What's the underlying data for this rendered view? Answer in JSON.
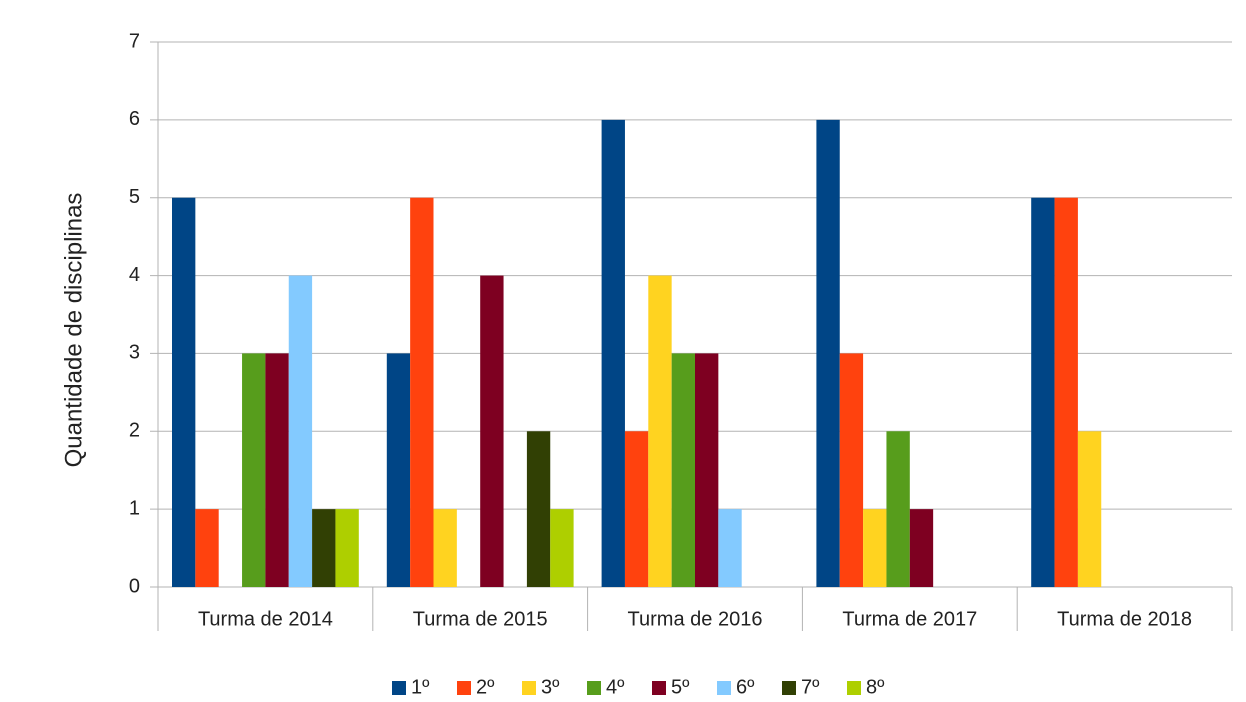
{
  "chart_data": {
    "type": "bar",
    "y_label": "Quantidade de disciplinas",
    "categories": [
      "Turma de 2014",
      "Turma de 2015",
      "Turma de 2016",
      "Turma de 2017",
      "Turma de 2018"
    ],
    "series": [
      {
        "name": "1º",
        "color": "#004586",
        "values": [
          5,
          3,
          6,
          6,
          5
        ]
      },
      {
        "name": "2º",
        "color": "#ff420e",
        "values": [
          1,
          5,
          2,
          3,
          5
        ]
      },
      {
        "name": "3º",
        "color": "#ffd320",
        "values": [
          0,
          1,
          4,
          1,
          2
        ]
      },
      {
        "name": "4º",
        "color": "#579d1c",
        "values": [
          3,
          0,
          3,
          2,
          0
        ]
      },
      {
        "name": "5º",
        "color": "#7e0021",
        "values": [
          3,
          4,
          3,
          1,
          0
        ]
      },
      {
        "name": "6º",
        "color": "#83caff",
        "values": [
          4,
          0,
          1,
          0,
          0
        ]
      },
      {
        "name": "7º",
        "color": "#314004",
        "values": [
          1,
          2,
          0,
          0,
          0
        ]
      },
      {
        "name": "8º",
        "color": "#aecf00",
        "values": [
          1,
          1,
          0,
          0,
          0
        ]
      }
    ],
    "ylim": [
      0,
      7
    ],
    "yticks": [
      0,
      1,
      2,
      3,
      4,
      5,
      6,
      7
    ],
    "grid": true,
    "legend": "bottom"
  }
}
